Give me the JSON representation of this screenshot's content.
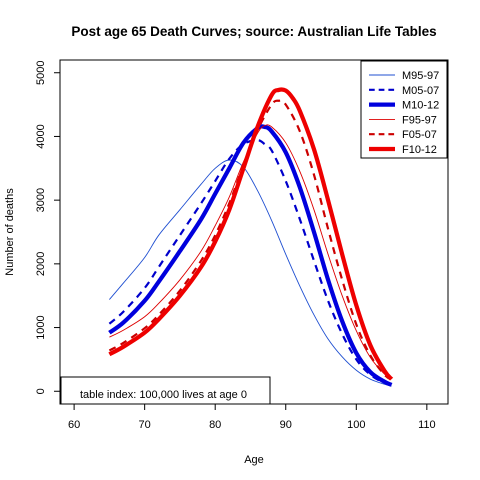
{
  "chart_data": {
    "type": "line",
    "title": "Post age 65 Death Curves; source: Australian Life Tables",
    "xlabel": "Age",
    "ylabel": "Number of deaths",
    "xlim": [
      58,
      113
    ],
    "ylim": [
      -200,
      5200
    ],
    "xticks": [
      60,
      70,
      80,
      90,
      100,
      110
    ],
    "yticks": [
      0,
      1000,
      2000,
      3000,
      4000,
      5000
    ],
    "grid": false,
    "legend_position": "top-right",
    "note": "table index: 100,000 lives at age 0",
    "series": [
      {
        "name": "M95-97",
        "color": "#1f4fd1",
        "dash": "solid",
        "weight": "thin",
        "x": [
          65,
          67,
          70,
          72,
          75,
          78,
          80,
          82,
          84,
          86,
          88,
          90,
          92,
          94,
          96,
          98,
          100,
          102,
          104,
          105
        ],
        "y": [
          1440,
          1700,
          2100,
          2450,
          2850,
          3250,
          3500,
          3630,
          3520,
          3150,
          2680,
          2150,
          1650,
          1200,
          820,
          540,
          330,
          190,
          110,
          80
        ]
      },
      {
        "name": "M05-07",
        "color": "#0000cc",
        "dash": "dashed",
        "weight": "medium",
        "x": [
          65,
          67,
          70,
          72,
          75,
          78,
          80,
          82,
          84,
          86,
          87,
          88,
          90,
          92,
          94,
          96,
          98,
          100,
          102,
          104,
          105
        ],
        "y": [
          1060,
          1250,
          1620,
          1950,
          2450,
          2950,
          3300,
          3650,
          3880,
          3940,
          3880,
          3780,
          3300,
          2700,
          2050,
          1420,
          900,
          500,
          260,
          130,
          100
        ]
      },
      {
        "name": "M10-12",
        "color": "#0000dd",
        "dash": "solid",
        "weight": "thick",
        "x": [
          65,
          67,
          70,
          72,
          75,
          78,
          80,
          82,
          84,
          86,
          87,
          88,
          90,
          92,
          94,
          96,
          98,
          100,
          102,
          104,
          105
        ],
        "y": [
          920,
          1080,
          1420,
          1720,
          2200,
          2700,
          3100,
          3500,
          3900,
          4130,
          4150,
          4080,
          3750,
          3200,
          2500,
          1750,
          1100,
          600,
          300,
          150,
          100
        ]
      },
      {
        "name": "F95-97",
        "color": "#dd0000",
        "dash": "solid",
        "weight": "thin",
        "x": [
          65,
          67,
          70,
          72,
          75,
          78,
          80,
          82,
          84,
          86,
          87,
          88,
          90,
          92,
          94,
          96,
          98,
          100,
          102,
          104,
          105
        ],
        "y": [
          850,
          960,
          1170,
          1380,
          1750,
          2200,
          2600,
          3050,
          3600,
          4050,
          4170,
          4150,
          3900,
          3450,
          2850,
          2150,
          1500,
          950,
          530,
          270,
          190
        ]
      },
      {
        "name": "F05-07",
        "color": "#cc0000",
        "dash": "dashed",
        "weight": "medium",
        "x": [
          65,
          67,
          70,
          72,
          75,
          78,
          80,
          82,
          84,
          86,
          88,
          89,
          90,
          92,
          94,
          96,
          98,
          100,
          102,
          104,
          105
        ],
        "y": [
          640,
          760,
          990,
          1200,
          1580,
          2050,
          2450,
          2950,
          3550,
          4100,
          4500,
          4560,
          4500,
          4080,
          3400,
          2550,
          1750,
          1050,
          560,
          260,
          180
        ]
      },
      {
        "name": "F10-12",
        "color": "#ee0000",
        "dash": "solid",
        "weight": "thick",
        "x": [
          65,
          67,
          70,
          72,
          75,
          78,
          80,
          82,
          84,
          86,
          88,
          89,
          90,
          91,
          92,
          94,
          96,
          98,
          100,
          102,
          104,
          105
        ],
        "y": [
          580,
          700,
          920,
          1130,
          1500,
          1950,
          2350,
          2850,
          3500,
          4150,
          4650,
          4730,
          4720,
          4600,
          4400,
          3800,
          3000,
          2150,
          1350,
          720,
          320,
          190
        ]
      }
    ]
  }
}
